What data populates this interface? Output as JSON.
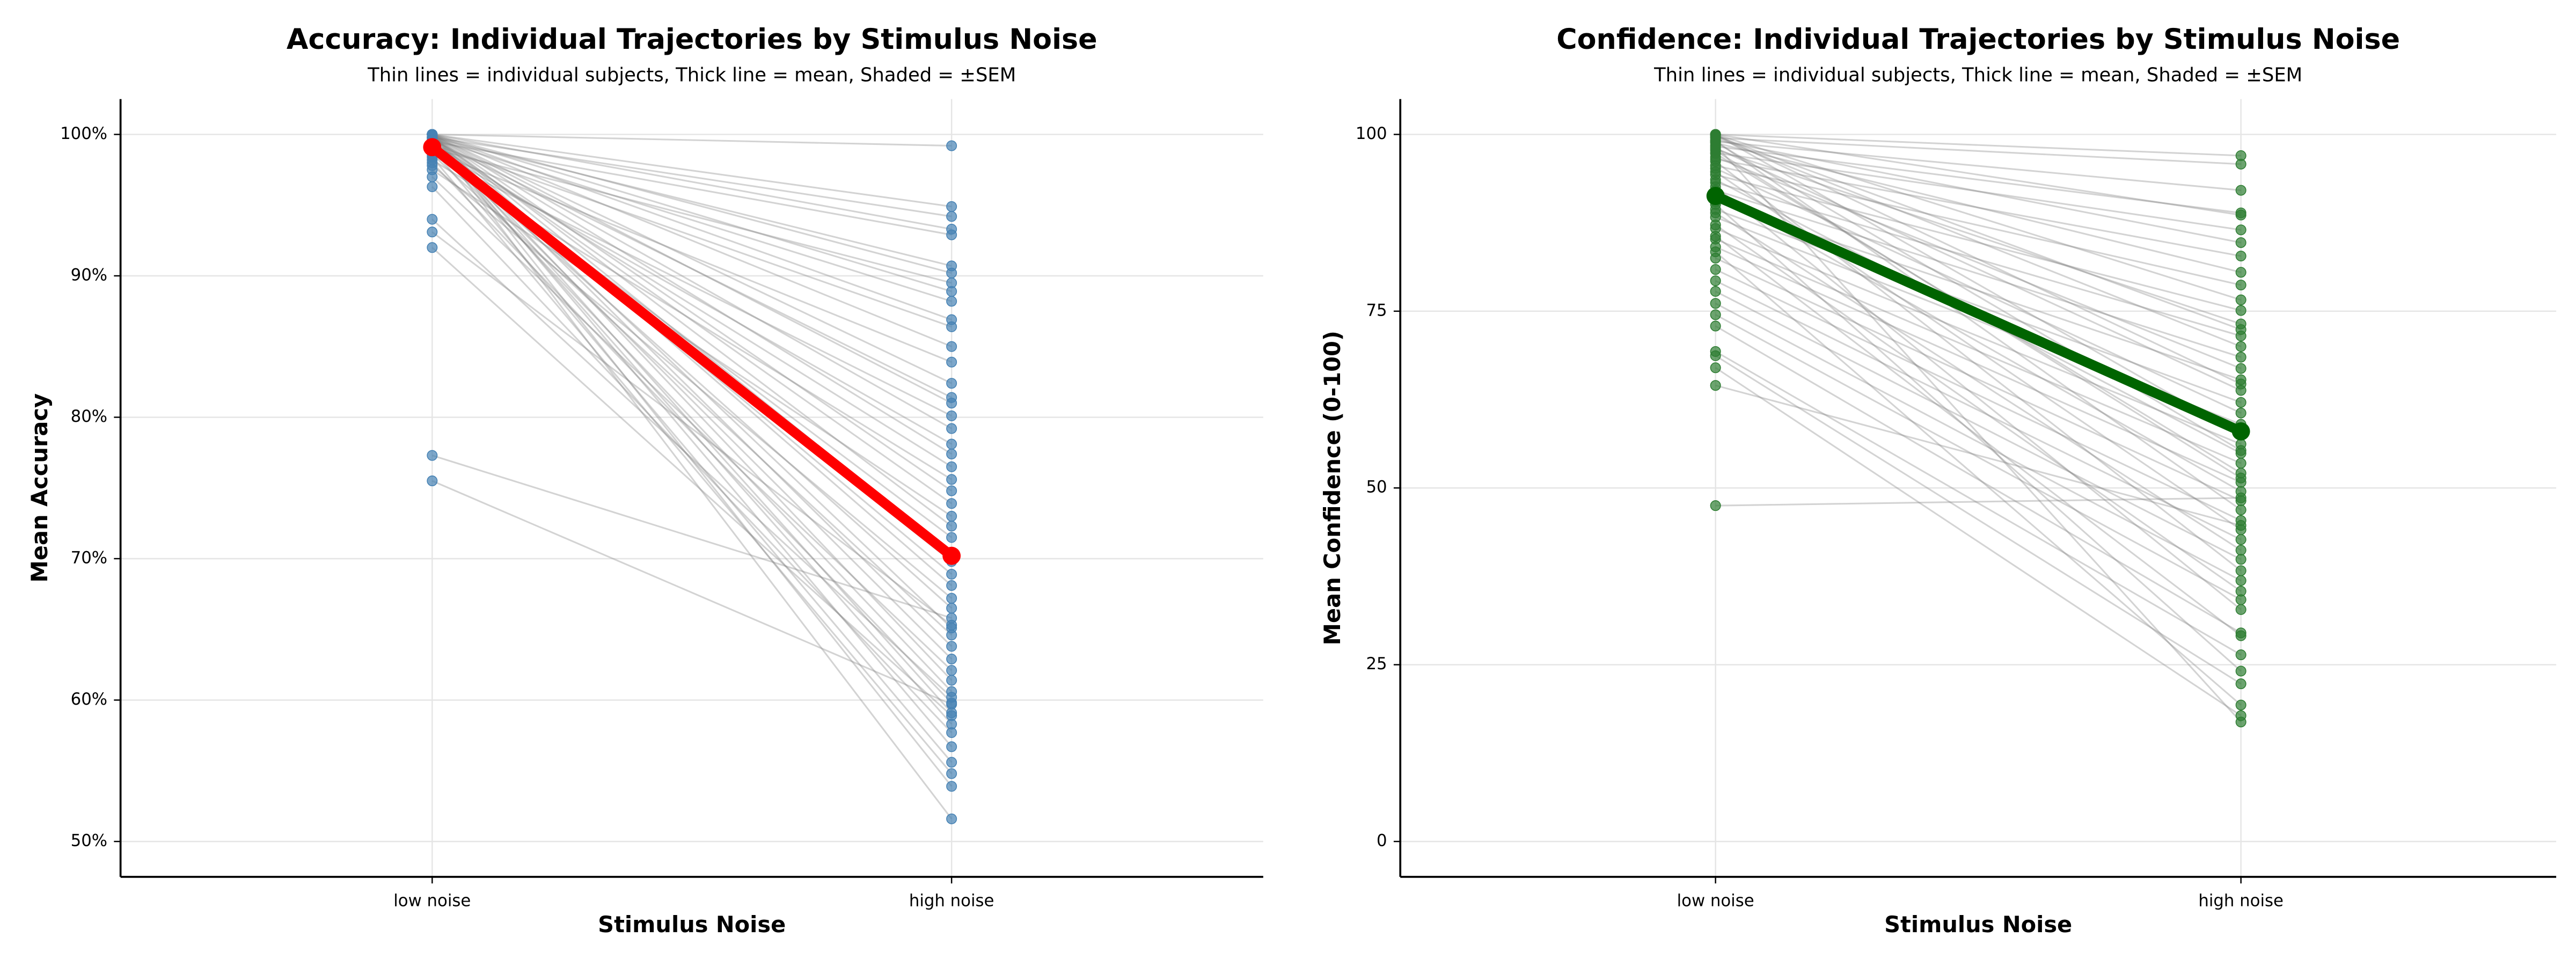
{
  "chart_data": [
    {
      "type": "slope",
      "title": "Accuracy: Individual Trajectories by Stimulus Noise",
      "subtitle": "Thin lines = individual subjects, Thick line = mean, Shaded = ±SEM",
      "xlabel": "Stimulus Noise",
      "ylabel": "Mean Accuracy",
      "categories": [
        "low noise",
        "high noise"
      ],
      "xlim": [
        -0.6,
        1.6
      ],
      "ylim": [
        47.5,
        102.5
      ],
      "yticks": [
        {
          "value": 50,
          "label": "50%"
        },
        {
          "value": 60,
          "label": "60%"
        },
        {
          "value": 70,
          "label": "70%"
        },
        {
          "value": 80,
          "label": "80%"
        },
        {
          "value": 90,
          "label": "90%"
        },
        {
          "value": 100,
          "label": "100%"
        }
      ],
      "grid": true,
      "line_color": "#808080",
      "point_color": "#4682b4",
      "mean_color": "#ff0000",
      "mean": [
        99.1,
        70.2
      ],
      "subjects": [
        [
          100,
          99.2
        ],
        [
          100,
          94.9
        ],
        [
          99.8,
          94.2
        ],
        [
          100,
          93.3
        ],
        [
          99.5,
          92.9
        ],
        [
          99.8,
          90.7
        ],
        [
          100,
          90.2
        ],
        [
          99,
          89.5
        ],
        [
          100,
          88.9
        ],
        [
          99.7,
          88.2
        ],
        [
          100,
          86.9
        ],
        [
          99.3,
          86.4
        ],
        [
          100,
          85
        ],
        [
          98.8,
          83.9
        ],
        [
          100,
          82.4
        ],
        [
          99.6,
          81.4
        ],
        [
          100,
          81
        ],
        [
          98.5,
          80.1
        ],
        [
          100,
          79.2
        ],
        [
          99,
          78.1
        ],
        [
          100,
          77.4
        ],
        [
          99.4,
          76.5
        ],
        [
          98.2,
          75.6
        ],
        [
          100,
          74.8
        ],
        [
          99.8,
          73.9
        ],
        [
          97.5,
          73
        ],
        [
          100,
          72.3
        ],
        [
          99.1,
          71.5
        ],
        [
          100,
          70.4
        ],
        [
          98.9,
          69.8
        ],
        [
          99.6,
          68.9
        ],
        [
          100,
          68.1
        ],
        [
          97.8,
          67.2
        ],
        [
          99.3,
          66.5
        ],
        [
          100,
          65.1
        ],
        [
          98.6,
          64.6
        ],
        [
          100,
          63.8
        ],
        [
          99.5,
          62.9
        ],
        [
          97,
          62.1
        ],
        [
          100,
          61.4
        ],
        [
          99.2,
          60.6
        ],
        [
          98,
          59.8
        ],
        [
          100,
          59.1
        ],
        [
          99.7,
          58.3
        ],
        [
          96.3,
          57.7
        ],
        [
          100,
          56.7
        ],
        [
          99,
          55.6
        ],
        [
          98.4,
          54.8
        ],
        [
          100,
          53.9
        ],
        [
          99.8,
          51.6
        ],
        [
          94,
          60.2
        ],
        [
          93.1,
          65.3
        ],
        [
          92,
          58.9
        ],
        [
          77.3,
          65.8
        ],
        [
          75.5,
          59.7
        ]
      ]
    },
    {
      "type": "slope",
      "title": "Confidence: Individual Trajectories by Stimulus Noise",
      "subtitle": "Thin lines = individual subjects, Thick line = mean, Shaded = ±SEM",
      "xlabel": "Stimulus Noise",
      "ylabel": "Mean Confidence (0-100)",
      "categories": [
        "low noise",
        "high noise"
      ],
      "xlim": [
        -0.6,
        1.6
      ],
      "ylim": [
        -5,
        105
      ],
      "yticks": [
        0,
        25,
        50,
        75,
        100
      ],
      "grid": true,
      "line_color": "#808080",
      "point_color": "#2e7d32",
      "mean_color": "#006400",
      "mean": [
        91.3,
        58.0
      ],
      "subjects": [
        [
          100,
          97
        ],
        [
          99.5,
          95.8
        ],
        [
          99,
          92.1
        ],
        [
          98.3,
          88.9
        ],
        [
          100,
          88.6
        ],
        [
          97.4,
          86.5
        ],
        [
          99.2,
          84.7
        ],
        [
          96.5,
          82.8
        ],
        [
          98.8,
          80.5
        ],
        [
          95.6,
          78.7
        ],
        [
          100,
          76.6
        ],
        [
          94.3,
          75.1
        ],
        [
          97.9,
          73.2
        ],
        [
          93.2,
          71.5
        ],
        [
          99.6,
          70
        ],
        [
          92.1,
          68.5
        ],
        [
          96.8,
          66.9
        ],
        [
          90.5,
          65.3
        ],
        [
          98.1,
          63.8
        ],
        [
          89.4,
          62.1
        ],
        [
          95.2,
          60.6
        ],
        [
          88.3,
          59
        ],
        [
          100,
          57.6
        ],
        [
          86.7,
          56.2
        ],
        [
          93.6,
          54.9
        ],
        [
          85.2,
          53.5
        ],
        [
          97.3,
          52.1
        ],
        [
          84.1,
          50.8
        ],
        [
          91.8,
          49.5
        ],
        [
          82.5,
          48.2
        ],
        [
          99.1,
          46.9
        ],
        [
          80.9,
          45.4
        ],
        [
          94.7,
          44.1
        ],
        [
          79.3,
          42.7
        ],
        [
          88.9,
          41.2
        ],
        [
          77.8,
          39.9
        ],
        [
          96.2,
          38.3
        ],
        [
          76.1,
          36.9
        ],
        [
          87.2,
          35.4
        ],
        [
          74.5,
          34.2
        ],
        [
          92.6,
          32.8
        ],
        [
          72.9,
          29.5
        ],
        [
          85.6,
          29.1
        ],
        [
          69.3,
          26.4
        ],
        [
          90.1,
          24.1
        ],
        [
          68.7,
          22.3
        ],
        [
          83.4,
          19.3
        ],
        [
          67,
          17.8
        ],
        [
          98.5,
          16.9
        ],
        [
          64.5,
          44.7
        ],
        [
          47.5,
          48.6
        ],
        [
          99.8,
          72.4
        ],
        [
          100,
          64.7
        ],
        [
          98.9,
          55.3
        ],
        [
          97.7,
          51.4
        ]
      ]
    }
  ]
}
